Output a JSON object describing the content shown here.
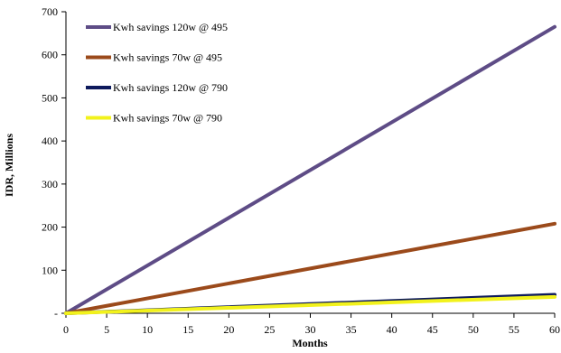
{
  "chart_data": {
    "type": "line",
    "title": "",
    "xlabel": "Months",
    "ylabel": "IDR, Millions",
    "xlim": [
      0,
      60
    ],
    "ylim": [
      0,
      700
    ],
    "x_ticks": [
      0,
      5,
      10,
      15,
      20,
      25,
      30,
      35,
      40,
      45,
      50,
      55,
      60
    ],
    "y_ticks": [
      0,
      100,
      200,
      300,
      400,
      500,
      600,
      700
    ],
    "y_tick_labels": [
      "-",
      "100",
      "200",
      "300",
      "400",
      "500",
      "600",
      "700"
    ],
    "grid": false,
    "legend_position": "top-left",
    "series": [
      {
        "name": "Kwh savings 120w @ 495",
        "color": "#5e4c86",
        "x": [
          0,
          60
        ],
        "y": [
          0,
          665
        ]
      },
      {
        "name": "Kwh savings 70w @ 495",
        "color": "#9b4a1b",
        "x": [
          0,
          60
        ],
        "y": [
          0,
          208
        ]
      },
      {
        "name": "Kwh savings 120w @ 790",
        "color": "#0d1a5c",
        "x": [
          0,
          60
        ],
        "y": [
          0,
          43
        ]
      },
      {
        "name": "Kwh savings 70w @ 790",
        "color": "#f2f21c",
        "x": [
          0,
          60
        ],
        "y": [
          0,
          38
        ]
      }
    ]
  }
}
